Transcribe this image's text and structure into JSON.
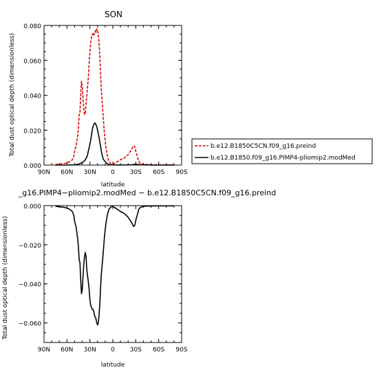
{
  "chart_data": [
    {
      "type": "line",
      "title": "SON",
      "xlabel": "latitude",
      "ylabel": "Total dust optical depth (dimensionless)",
      "xticks": [
        90,
        60,
        30,
        0,
        -30,
        -60,
        -90
      ],
      "xtick_labels": [
        "90N",
        "60N",
        "30N",
        "0",
        "30S",
        "60S",
        "90S"
      ],
      "xlim": [
        90,
        -90
      ],
      "ylim": [
        0,
        0.08
      ],
      "yticks": [
        0,
        0.02,
        0.04,
        0.06,
        0.08
      ],
      "ytick_labels": [
        "0.000",
        "0.020",
        "0.040",
        "0.060",
        "0.080"
      ],
      "legend_position": "right",
      "series": [
        {
          "name": "b.e12.B1850C5CN.f09_g16.preind",
          "color": "#dd0000",
          "dash": "dashed",
          "x": [
            75,
            65,
            60,
            56,
            53,
            51,
            50,
            48,
            47,
            46,
            45,
            44,
            43,
            42,
            41,
            40,
            39,
            38,
            37,
            36,
            35,
            34,
            33,
            32,
            31,
            30,
            29,
            28,
            27,
            26,
            25,
            24,
            23,
            22,
            21,
            20,
            19,
            18,
            17,
            16,
            15,
            13,
            11,
            9,
            7,
            5,
            3,
            1,
            -1,
            -3,
            -6,
            -10,
            -15,
            -20,
            -23,
            -26,
            -27,
            -28,
            -29,
            -30,
            -32,
            -34,
            -36,
            -40,
            -45,
            -50,
            -60,
            -70,
            -80
          ],
          "y": [
            0.0003,
            0.0008,
            0.0012,
            0.002,
            0.003,
            0.005,
            0.008,
            0.011,
            0.014,
            0.017,
            0.021,
            0.029,
            0.03,
            0.04,
            0.048,
            0.045,
            0.038,
            0.032,
            0.029,
            0.03,
            0.035,
            0.04,
            0.045,
            0.05,
            0.058,
            0.065,
            0.07,
            0.073,
            0.075,
            0.075,
            0.074,
            0.076,
            0.077,
            0.076,
            0.078,
            0.077,
            0.075,
            0.07,
            0.062,
            0.052,
            0.043,
            0.03,
            0.018,
            0.01,
            0.005,
            0.002,
            0.001,
            0.0005,
            0.0008,
            0.0012,
            0.002,
            0.003,
            0.004,
            0.006,
            0.008,
            0.01,
            0.011,
            0.011,
            0.01,
            0.008,
            0.005,
            0.002,
            0.001,
            0.0005,
            0.0003,
            0.0002,
            0.0001,
            0.0001,
            0.0001
          ]
        },
        {
          "name": "b.e12.B1850.f09_g16.PIMP4-pliomip2.modMed",
          "color": "#000000",
          "dash": "solid",
          "x": [
            75,
            60,
            50,
            45,
            42,
            40,
            38,
            36,
            35,
            34,
            33,
            32,
            31,
            30,
            29,
            28,
            27,
            26,
            25,
            24,
            23,
            22,
            21,
            20,
            19,
            18,
            17,
            16,
            15,
            14,
            13,
            12,
            10,
            8,
            6,
            4,
            0,
            -10,
            -20,
            -25,
            -28,
            -30,
            -33,
            -36,
            -40,
            -50,
            -60,
            -70,
            -80
          ],
          "y": [
            0.0,
            0.0,
            0.0001,
            0.0005,
            0.001,
            0.0015,
            0.002,
            0.003,
            0.004,
            0.0045,
            0.006,
            0.008,
            0.01,
            0.012,
            0.014,
            0.017,
            0.02,
            0.022,
            0.023,
            0.024,
            0.024,
            0.023,
            0.022,
            0.02,
            0.018,
            0.016,
            0.013,
            0.011,
            0.008,
            0.006,
            0.004,
            0.003,
            0.002,
            0.001,
            0.0005,
            0.0002,
            0.0001,
            0.0,
            0.0001,
            0.0002,
            0.0004,
            0.0004,
            0.0003,
            0.0002,
            0.0001,
            0.0,
            0.0,
            0.0,
            0.0
          ]
        }
      ]
    },
    {
      "type": "line",
      "title": "_g16.PIMP4−pliomip2.modMed − b.e12.B1850C5CN.f09_g16.preind",
      "xlabel": "latitude",
      "ylabel": "Total dust optical depth (dimensionless)",
      "xticks": [
        90,
        60,
        30,
        0,
        -30,
        -60,
        -90
      ],
      "xtick_labels": [
        "90N",
        "60N",
        "30N",
        "0",
        "30S",
        "60S",
        "90S"
      ],
      "xlim": [
        90,
        -90
      ],
      "ylim": [
        -0.07,
        0.0
      ],
      "yticks": [
        0,
        -0.02,
        -0.04,
        -0.06
      ],
      "ytick_labels": [
        "0.000",
        "−0.020",
        "−0.040",
        "−0.060"
      ],
      "series": [
        {
          "name": "",
          "color": "#000000",
          "dash": "solid",
          "x": [
            75,
            65,
            60,
            56,
            53,
            51,
            50,
            48,
            47,
            46,
            45,
            44,
            43,
            42,
            41,
            40,
            39,
            38,
            37,
            36,
            35,
            34,
            33,
            32,
            31,
            30,
            29,
            28,
            27,
            26,
            25,
            24,
            23,
            22,
            21,
            20,
            19,
            18,
            17,
            16,
            15,
            13,
            11,
            9,
            7,
            5,
            3,
            1,
            -1,
            -3,
            -6,
            -10,
            -15,
            -20,
            -23,
            -26,
            -27,
            -28,
            -29,
            -30,
            -32,
            -34,
            -36,
            -40,
            -45,
            -50,
            -60,
            -70,
            -80
          ],
          "y": [
            -0.0003,
            -0.0008,
            -0.0012,
            -0.002,
            -0.003,
            -0.005,
            -0.008,
            -0.011,
            -0.014,
            -0.017,
            -0.021,
            -0.028,
            -0.029,
            -0.038,
            -0.045,
            -0.043,
            -0.036,
            -0.03,
            -0.026,
            -0.024,
            -0.026,
            -0.033,
            -0.036,
            -0.039,
            -0.043,
            -0.048,
            -0.051,
            -0.052,
            -0.053,
            -0.053,
            -0.054,
            -0.056,
            -0.057,
            -0.058,
            -0.06,
            -0.061,
            -0.06,
            -0.056,
            -0.05,
            -0.042,
            -0.035,
            -0.026,
            -0.016,
            -0.009,
            -0.0045,
            -0.0018,
            -0.0009,
            -0.0004,
            -0.0007,
            -0.0011,
            -0.0019,
            -0.003,
            -0.004,
            -0.0059,
            -0.0077,
            -0.0097,
            -0.0106,
            -0.0106,
            -0.0097,
            -0.0076,
            -0.0047,
            -0.0018,
            -0.0009,
            -0.0004,
            -0.0002,
            -0.0002,
            -0.0001,
            -0.0001,
            -0.0001
          ]
        }
      ]
    }
  ]
}
